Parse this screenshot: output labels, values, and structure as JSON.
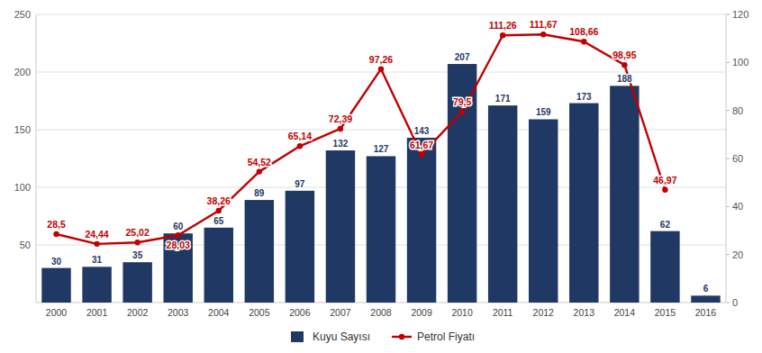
{
  "chart_data": {
    "type": "bar",
    "categories": [
      "2000",
      "2001",
      "2002",
      "2003",
      "2004",
      "2005",
      "2006",
      "2007",
      "2008",
      "2009",
      "2010",
      "2011",
      "2012",
      "2013",
      "2014",
      "2015",
      "2016"
    ],
    "series": [
      {
        "name": "Kuyu Sayısı",
        "type": "bar",
        "color": "#1f3864",
        "values": [
          30,
          31,
          35,
          60,
          65,
          89,
          97,
          132,
          127,
          143,
          207,
          171,
          159,
          173,
          188,
          62,
          6
        ]
      },
      {
        "name": "Petrol Fiyatı",
        "type": "line",
        "axis": "y2",
        "color": "#c00000",
        "marker": "circle",
        "values": [
          28.5,
          24.44,
          25.02,
          28.03,
          38.26,
          54.52,
          65.14,
          72.39,
          97.26,
          61.67,
          79.5,
          111.26,
          111.67,
          108.66,
          98.95,
          46.97,
          null
        ],
        "value_labels": [
          "28,5",
          "24,44",
          "25,02",
          "28,03",
          "38,26",
          "54,52",
          "65,14",
          "72,39",
          "97,26",
          "61,67",
          "79,5",
          "111,26",
          "111,67",
          "108,66",
          "98,95",
          "46,97",
          null
        ]
      }
    ],
    "ylim": [
      0,
      250
    ],
    "yticks": [
      50,
      100,
      150,
      200,
      250
    ],
    "y2lim": [
      0,
      120
    ],
    "y2ticks": [
      0,
      20,
      40,
      60,
      80,
      100,
      120
    ],
    "grid": true,
    "legend": "bottom",
    "data_labels": true
  }
}
